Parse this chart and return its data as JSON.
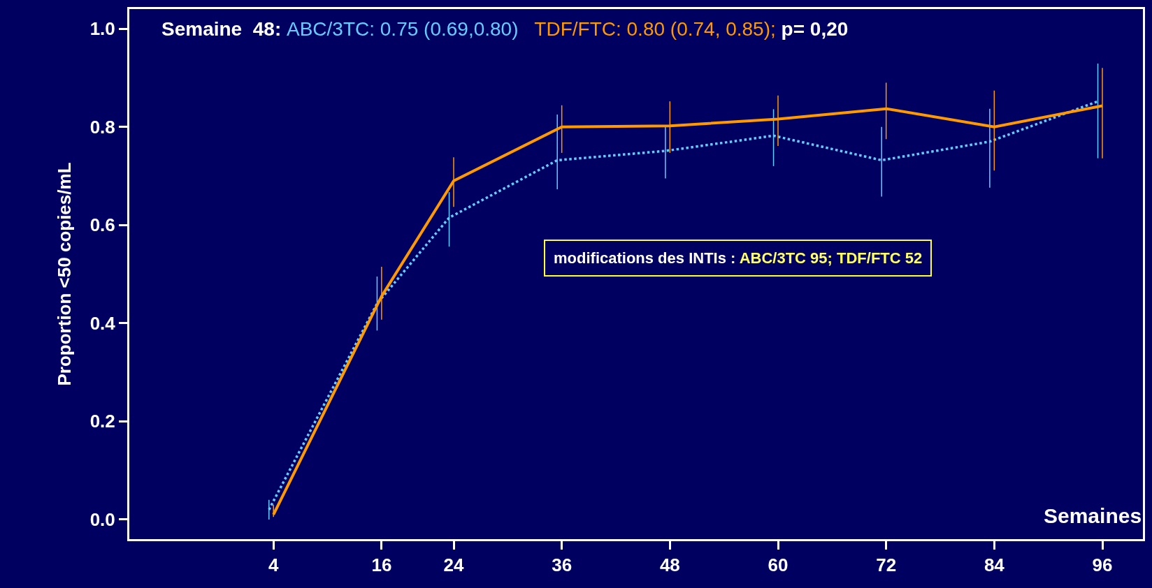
{
  "chart_data": {
    "type": "line",
    "ylabel": "Proportion <50 copies/mL",
    "xlabel": "Semaines",
    "x": [
      4,
      16,
      24,
      36,
      48,
      60,
      72,
      84,
      96
    ],
    "xlim": [
      -12,
      100.5
    ],
    "xticks": [
      4,
      16,
      24,
      36,
      48,
      60,
      72,
      84,
      96
    ],
    "ylim": [
      -0.04,
      1.04
    ],
    "yticks": [
      {
        "value": 0,
        "label": "0.0"
      },
      0.2,
      0.4,
      0.6,
      0.8,
      {
        "value": 1,
        "label": "1.0"
      }
    ],
    "grid": false,
    "marker": "none",
    "series": [
      {
        "color": "#66ccff",
        "line_style": "dotted",
        "x": [
          3.5,
          15.5,
          23.5,
          35.5,
          47.5,
          59.5,
          71.5,
          83.5,
          95.5
        ],
        "values": [
          0.02,
          0.44,
          0.615,
          0.732,
          0.751,
          0.782,
          0.732,
          0.77,
          0.852
        ],
        "errors": [
          [
            0.0,
            0.04
          ],
          [
            0.385,
            0.495
          ],
          [
            0.556,
            0.667
          ],
          [
            0.673,
            0.825
          ],
          [
            0.695,
            0.8
          ],
          [
            0.72,
            0.836
          ],
          [
            0.658,
            0.8
          ],
          [
            0.676,
            0.837
          ],
          [
            0.736,
            0.929
          ]
        ]
      },
      {
        "color": "#ff9900",
        "line_style": "solid",
        "values": [
          0.01,
          0.455,
          0.69,
          0.8,
          0.802,
          0.816,
          0.837,
          0.8,
          0.843
        ],
        "errors": [
          [
            0.005,
            0.03
          ],
          [
            0.407,
            0.515
          ],
          [
            0.637,
            0.738
          ],
          [
            0.747,
            0.844
          ],
          [
            0.747,
            0.852
          ],
          [
            0.761,
            0.864
          ],
          [
            0.775,
            0.89
          ],
          [
            0.711,
            0.874
          ],
          [
            0.736,
            0.92
          ]
        ]
      }
    ],
    "annotations": [
      "Semaine  48: ",
      "ABC/3TC: 0.75 (0.69,0.80)",
      "TDF/FTC: 0.80 (0.74, 0.85);",
      "p= 0,20",
      "modifications des INTIs : ",
      "ABC/3TC 95; TDF/FTC 52"
    ]
  }
}
